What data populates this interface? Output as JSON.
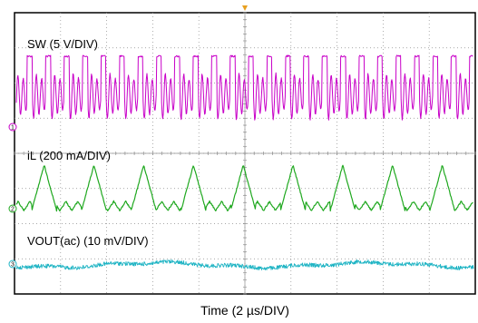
{
  "chart_data": {
    "type": "line",
    "xlabel": "Time (2 µs/DIV)",
    "x_divisions": 10,
    "y_divisions": 8,
    "grid": true,
    "grid_style": "dotted",
    "series": [
      {
        "name": "SW (5 V/DIV)",
        "color": "#c800c8",
        "marker": "1",
        "waveform": "square pulses at switching node with ringing in off-time",
        "period_div": 0.4
      },
      {
        "name": "iL (200 mA/DIV)",
        "color": "#1fa81f",
        "marker": "2",
        "waveform": "triangular inductor current with alternating high and low peaks",
        "period_div": 0.4
      },
      {
        "name": "VOUT(ac) (10 mV/DIV)",
        "color": "#1fb4c4",
        "marker": "3",
        "waveform": "small noisy ac ripple",
        "period_div": 0.4
      }
    ]
  }
}
